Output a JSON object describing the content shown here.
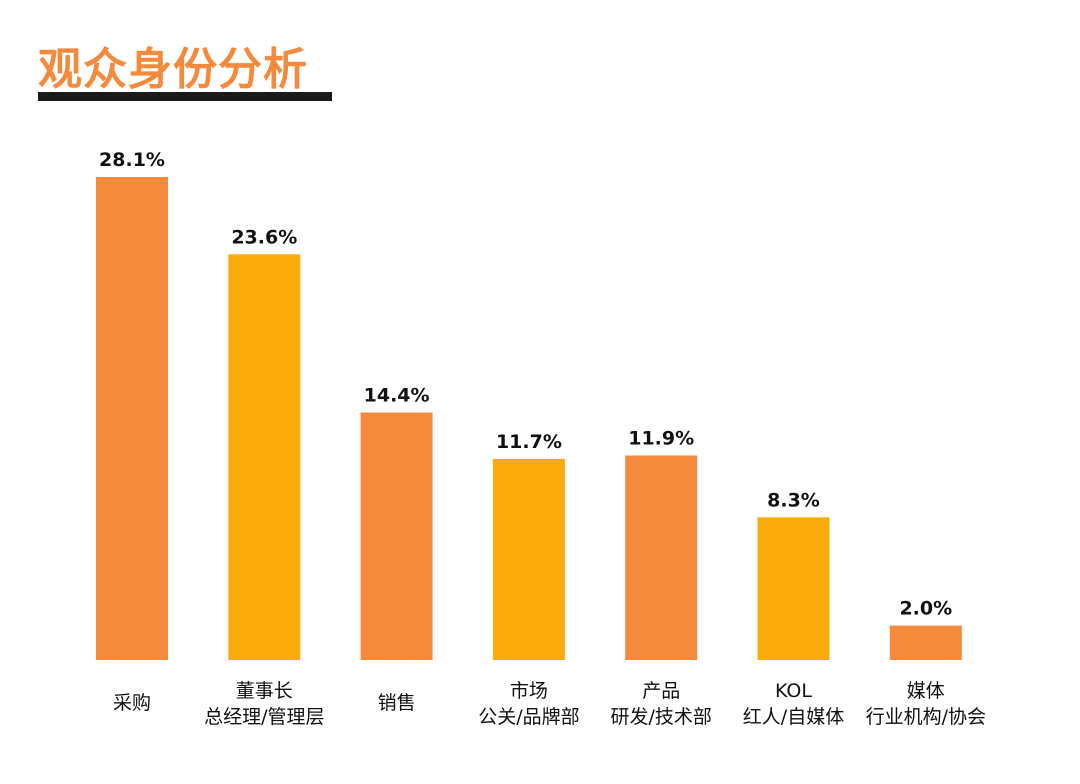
{
  "chart_data": {
    "type": "bar",
    "title": "观众身份分析",
    "categories": [
      [
        "采购"
      ],
      [
        "董事长",
        "总经理/管理层"
      ],
      [
        "销售"
      ],
      [
        "市场",
        "公关/品牌部"
      ],
      [
        "产品",
        "研发/技术部"
      ],
      [
        "KOL",
        "红人/自媒体"
      ],
      [
        "媒体",
        "行业机构/协会"
      ]
    ],
    "values": [
      28.1,
      23.6,
      14.4,
      11.7,
      11.9,
      8.3,
      2.0
    ],
    "value_labels": [
      "28.1%",
      "23.6%",
      "14.4%",
      "11.7%",
      "11.9%",
      "8.3%",
      "2.0%"
    ],
    "bar_colors": [
      "#f68a3c",
      "#fcab0c",
      "#f68a3c",
      "#fcab0c",
      "#f68a3c",
      "#fcab0c",
      "#f68a3c"
    ],
    "ylim": [
      0,
      28.1
    ],
    "grid": false,
    "xlabel": "",
    "ylabel": ""
  },
  "colors": {
    "title": "#f68a3c",
    "underline": "#1a1a1a",
    "orange": "#f68a3c",
    "yellow": "#fcab0c",
    "text": "#111111"
  }
}
